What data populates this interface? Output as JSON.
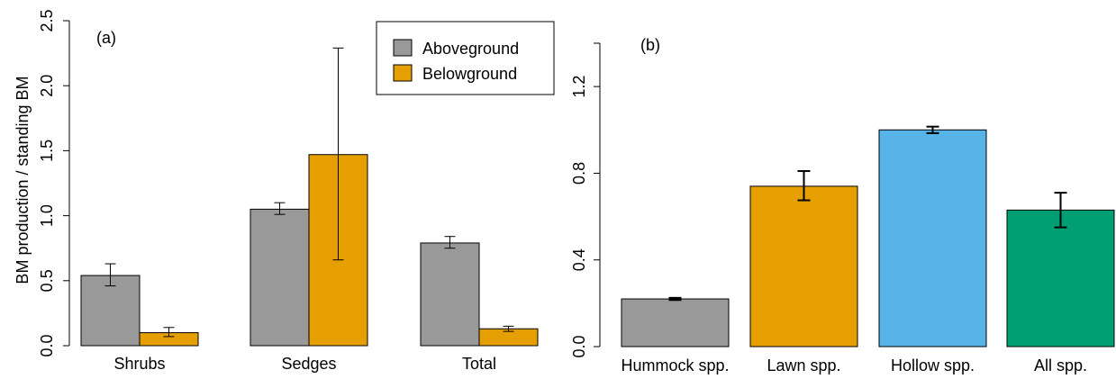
{
  "chart_data": [
    {
      "type": "bar",
      "panel_label": "(a)",
      "title": "",
      "xlabel": "",
      "ylabel": "BM production / standing BM",
      "ylim": [
        0,
        2.5
      ],
      "yticks": [
        "0.0",
        "0.5",
        "1.0",
        "1.5",
        "2.0",
        "2.5"
      ],
      "categories": [
        "Shrubs",
        "Sedges",
        "Total"
      ],
      "series": [
        {
          "name": "Aboveground",
          "color": "#999999",
          "values": [
            0.54,
            1.05,
            0.79
          ],
          "err_low": [
            0.46,
            1.01,
            0.75
          ],
          "err_high": [
            0.63,
            1.1,
            0.84
          ]
        },
        {
          "name": "Belowground",
          "color": "#E69F00",
          "values": [
            0.1,
            1.47,
            0.13
          ],
          "err_low": [
            0.07,
            0.66,
            0.11
          ],
          "err_high": [
            0.14,
            2.29,
            0.15
          ]
        }
      ],
      "legend_position": "top-right",
      "grid": false
    },
    {
      "type": "bar",
      "panel_label": "(b)",
      "title": "",
      "xlabel": "",
      "ylabel": "",
      "ylim": [
        0,
        1.4
      ],
      "yticks": [
        "0.0",
        "0.4",
        "0.8",
        "1.2"
      ],
      "categories": [
        "Hummock spp.",
        "Lawn spp.",
        "Hollow spp.",
        "All spp."
      ],
      "values": [
        0.22,
        0.74,
        1.0,
        0.63
      ],
      "colors": [
        "#999999",
        "#E69F00",
        "#56B4E9",
        "#009E73"
      ],
      "err_low": [
        0.215,
        0.675,
        0.985,
        0.55
      ],
      "err_high": [
        0.225,
        0.81,
        1.015,
        0.71
      ],
      "grid": false
    }
  ]
}
